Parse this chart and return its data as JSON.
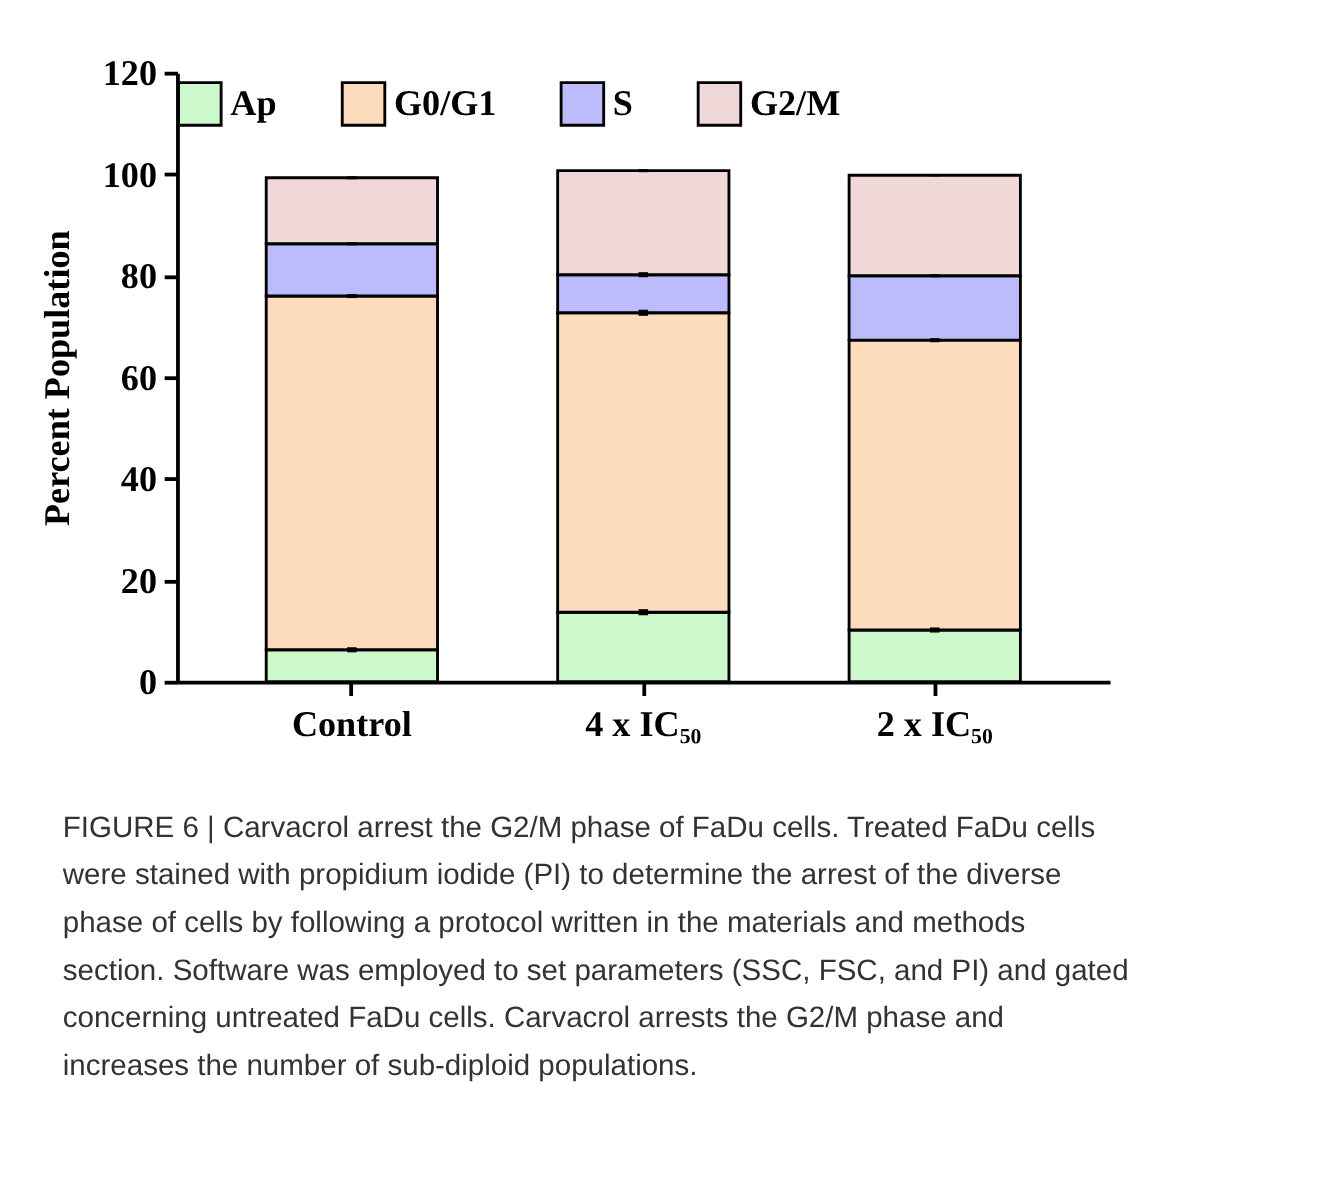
{
  "chart_data": {
    "type": "bar",
    "stacked": true,
    "ylabel": "Percent Population",
    "categories": [
      "Control",
      "4 x IC₅₀",
      "2 x IC₅₀"
    ],
    "series": [
      {
        "name": "Ap",
        "color": "#ccf8cc",
        "values": [
          6.3,
          13.7,
          10.2
        ],
        "errors": [
          0.5,
          0.6,
          0.5
        ]
      },
      {
        "name": "G0/G1",
        "color": "#fcdcbc",
        "values": [
          69.7,
          59.0,
          57.1
        ],
        "errors": [
          0.4,
          0.6,
          0.4
        ]
      },
      {
        "name": "S",
        "color": "#bcbcfc",
        "values": [
          10.3,
          7.5,
          12.7
        ],
        "errors": [
          0.3,
          0.5,
          0.3
        ]
      },
      {
        "name": "G2/M",
        "color": "#f0d8d8",
        "values": [
          13.0,
          20.5,
          19.8
        ],
        "errors": [
          0.3,
          0.3,
          0.2
        ]
      }
    ],
    "ylim": [
      0,
      120
    ],
    "yticks": [
      0,
      20,
      40,
      60,
      80,
      100,
      120
    ],
    "grid": false,
    "legend": "top",
    "annotations": [
      "FIGURE 6 | Carvacrol arrest the G2/M phase of FaDu cells. Treated FaDu cells were stained with propidium iodide (PI) to determine the arrest of the diverse phase of cells by following a protocol written in the materials and methods section. Software was employed to set parameters (SSC, FSC, and PI) and gated concerning untreated FaDu cells. Carvacrol arrests the G2/M phase and increases the number of sub-diploid populations."
    ]
  }
}
